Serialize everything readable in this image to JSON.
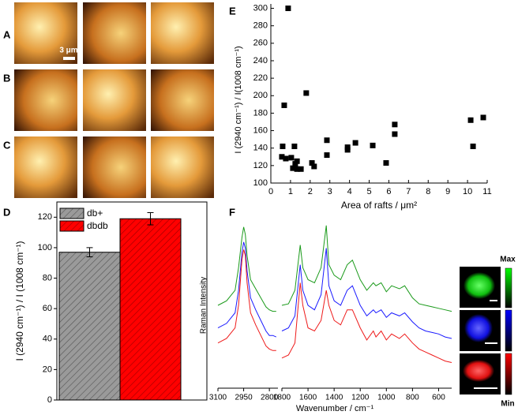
{
  "panels": [
    "A",
    "B",
    "C",
    "D",
    "E",
    "F"
  ],
  "scale_bar": "3 μm",
  "colorbar": {
    "max": "Max",
    "min": "Min"
  },
  "chart_data": [
    {
      "type": "bar",
      "ylabel": "I (2940 cm⁻¹) / I (1008 cm⁻¹)",
      "categories": [
        "db+",
        "dbdb"
      ],
      "values": [
        97,
        119
      ],
      "errors": [
        3,
        4
      ],
      "colors": [
        "#9a9a9a",
        "#ff0000"
      ],
      "ylim": [
        0,
        130
      ],
      "yticks": [
        0,
        20,
        40,
        60,
        80,
        100,
        120
      ],
      "legend": "top-left"
    },
    {
      "type": "scatter",
      "xlabel": "Area of rafts / μm²",
      "ylabel": "I (2940 cm⁻¹) / I(1008 cm⁻¹)",
      "color": "#000000",
      "x": [
        0.56,
        0.6,
        0.68,
        0.88,
        0.76,
        1.04,
        1.2,
        1.12,
        1.24,
        1.33,
        1.33,
        1.53,
        1.8,
        2.09,
        2.2,
        2.85,
        2.85,
        3.9,
        3.9,
        4.3,
        5.18,
        5.86,
        6.3,
        6.3,
        10.16,
        10.28,
        10.8
      ],
      "values": [
        130,
        142,
        189,
        300,
        128,
        129,
        142,
        117,
        122,
        116,
        125,
        116,
        203,
        123,
        119,
        149,
        132,
        141,
        138,
        146,
        143,
        123,
        167,
        156,
        172,
        142,
        175
      ],
      "xlim": [
        0,
        11
      ],
      "xticks": [
        0,
        1,
        2,
        3,
        4,
        5,
        6,
        7,
        8,
        9,
        10,
        11
      ],
      "ylim": [
        100,
        305
      ],
      "yticks": [
        100,
        120,
        140,
        160,
        180,
        200,
        220,
        240,
        260,
        280,
        300
      ]
    },
    {
      "type": "line",
      "xlabel": "Wavenumber / cm⁻¹",
      "ylabel": "Raman Intensity",
      "xlims": [
        [
          3100,
          2750
        ],
        [
          1800,
          500
        ]
      ],
      "xticks": [
        3100,
        2950,
        2800,
        1800,
        1600,
        1400,
        1200,
        1000,
        800,
        600
      ],
      "ylim": [
        0,
        110
      ],
      "x": [
        3100,
        3050,
        3000,
        2980,
        2960,
        2950,
        2940,
        2930,
        2910,
        2880,
        2850,
        2820,
        2800,
        2780,
        2760,
        1800,
        1750,
        1700,
        1660,
        1640,
        1600,
        1550,
        1500,
        1460,
        1440,
        1400,
        1350,
        1300,
        1260,
        1200,
        1150,
        1100,
        1080,
        1040,
        1000,
        960,
        900,
        860,
        800,
        750,
        700,
        650,
        600,
        550,
        500
      ],
      "series": [
        {
          "color": "#1a9a1a",
          "values": [
            55,
            58,
            65,
            80,
            100,
            107,
            102,
            88,
            72,
            66,
            60,
            54,
            52,
            51,
            51,
            55,
            56,
            65,
            95,
            80,
            72,
            70,
            80,
            108,
            82,
            75,
            72,
            82,
            85,
            72,
            65,
            70,
            68,
            70,
            64,
            68,
            66,
            68,
            60,
            56,
            55,
            54,
            53,
            52,
            51
          ]
        },
        {
          "color": "#1a1aff",
          "values": [
            40,
            43,
            50,
            65,
            90,
            97,
            93,
            78,
            60,
            52,
            45,
            38,
            35,
            35,
            34,
            38,
            40,
            48,
            82,
            65,
            55,
            52,
            62,
            93,
            68,
            58,
            55,
            65,
            68,
            55,
            48,
            52,
            50,
            52,
            47,
            50,
            48,
            50,
            44,
            40,
            38,
            37,
            36,
            34,
            33
          ]
        },
        {
          "color": "#ee1a1a",
          "values": [
            30,
            33,
            40,
            55,
            85,
            92,
            88,
            70,
            50,
            42,
            35,
            28,
            26,
            25,
            25,
            20,
            22,
            30,
            70,
            55,
            40,
            38,
            45,
            65,
            55,
            45,
            42,
            52,
            52,
            40,
            32,
            38,
            34,
            38,
            32,
            36,
            33,
            36,
            30,
            26,
            24,
            22,
            20,
            18,
            17
          ]
        }
      ]
    }
  ]
}
